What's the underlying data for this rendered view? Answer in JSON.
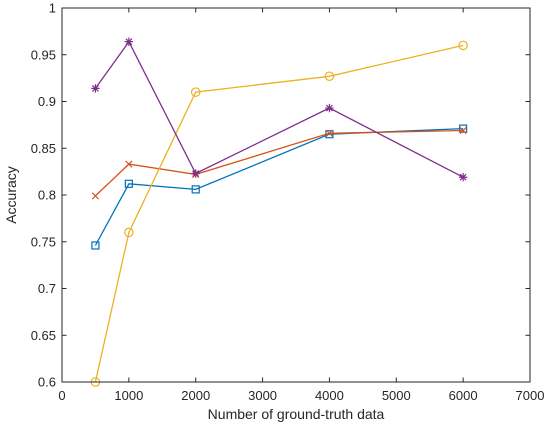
{
  "chart_data": {
    "type": "line",
    "title": "",
    "xlabel": "Number of ground-truth data",
    "ylabel": "Accuracy",
    "xlim": [
      0,
      7000
    ],
    "ylim": [
      0.6,
      1.0
    ],
    "xticks": [
      0,
      1000,
      2000,
      3000,
      4000,
      5000,
      6000,
      7000
    ],
    "xtick_labels": [
      "0",
      "1000",
      "2000",
      "3000",
      "4000",
      "5000",
      "6000",
      "7000"
    ],
    "yticks": [
      0.6,
      0.65,
      0.7,
      0.75,
      0.8,
      0.85,
      0.9,
      0.95,
      1.0
    ],
    "ytick_labels": [
      "0.6",
      "0.65",
      "0.7",
      "0.75",
      "0.8",
      "0.85",
      "0.9",
      "0.95",
      "1"
    ],
    "grid": false,
    "legend": "none",
    "x": [
      500,
      1000,
      2000,
      4000,
      6000
    ],
    "series": [
      {
        "color": "#0072BD",
        "marker": "square",
        "values": [
          0.746,
          0.812,
          0.806,
          0.865,
          0.871
        ]
      },
      {
        "color": "#D95319",
        "marker": "x",
        "values": [
          0.799,
          0.833,
          0.822,
          0.866,
          0.869
        ]
      },
      {
        "color": "#EDB120",
        "marker": "circle",
        "values": [
          0.6,
          0.76,
          0.91,
          0.927,
          0.96
        ]
      },
      {
        "color": "#7E2F8E",
        "marker": "asterisk",
        "values": [
          0.914,
          0.964,
          0.823,
          0.893,
          0.819
        ]
      }
    ]
  }
}
